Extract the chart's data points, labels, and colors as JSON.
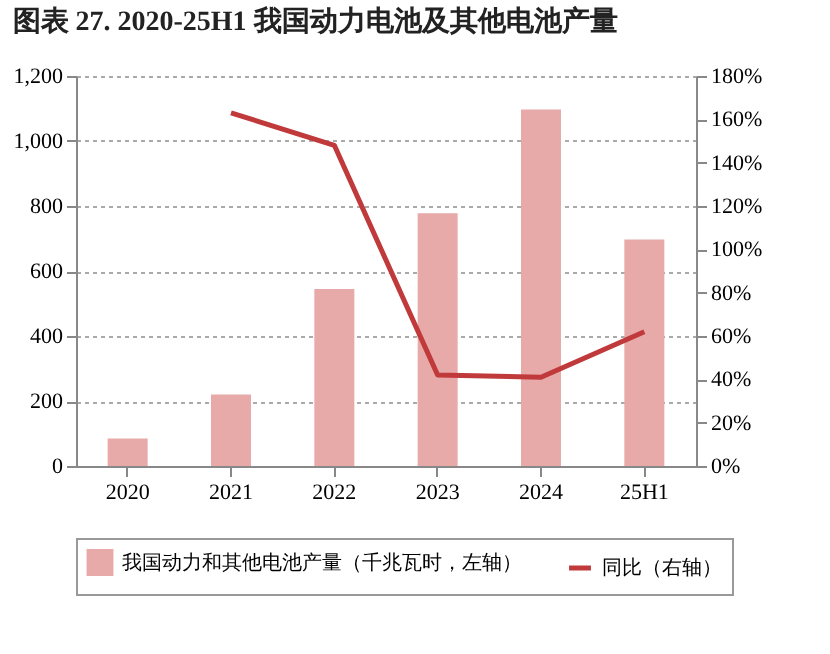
{
  "chart_data": {
    "type": "bar",
    "title": "图表 27. 2020-25H1 我国动力电池及其他电池产量",
    "categories": [
      "2020",
      "2021",
      "2022",
      "2023",
      "2024",
      "25H1"
    ],
    "series": [
      {
        "name": "我国动力和其他电池产量（千兆瓦时，左轴）",
        "color": "#e8a9a9",
        "values": [
          85,
          220,
          545,
          778,
          1097,
          697
        ]
      },
      {
        "name": "同比（右轴）",
        "type": "line",
        "axis": "y2",
        "color": "#c0393b",
        "values": [
          null,
          163,
          148,
          42,
          41,
          62
        ]
      }
    ],
    "ylim": [
      0,
      1200
    ],
    "yticks": [
      0,
      200,
      400,
      600,
      800,
      {
        "value": 1000,
        "label": "1,000"
      },
      {
        "value": 1200,
        "label": "1,200"
      }
    ],
    "y2lim": [
      0,
      180
    ],
    "y2ticks": [
      {
        "value": 0,
        "label": "0%"
      },
      {
        "value": 20,
        "label": "20%"
      },
      {
        "value": 40,
        "label": "40%"
      },
      {
        "value": 60,
        "label": "60%"
      },
      {
        "value": 80,
        "label": "80%"
      },
      {
        "value": 100,
        "label": "100%"
      },
      {
        "value": 120,
        "label": "120%"
      },
      {
        "value": 140,
        "label": "140%"
      },
      {
        "value": 160,
        "label": "160%"
      },
      {
        "value": 180,
        "label": "180%"
      }
    ],
    "grid": "y",
    "legend": "bottom",
    "marker": "none",
    "line_style": "solid"
  }
}
